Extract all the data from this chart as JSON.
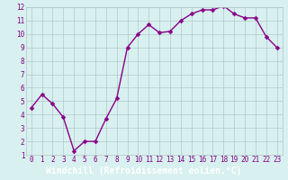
{
  "x": [
    0,
    1,
    2,
    3,
    4,
    5,
    6,
    7,
    8,
    9,
    10,
    11,
    12,
    13,
    14,
    15,
    16,
    17,
    18,
    19,
    20,
    21,
    22,
    23
  ],
  "y": [
    4.5,
    5.5,
    4.8,
    3.8,
    1.3,
    2.0,
    2.0,
    3.7,
    5.2,
    9.0,
    10.0,
    10.7,
    10.1,
    10.2,
    11.0,
    11.5,
    11.8,
    11.8,
    12.1,
    11.5,
    11.2,
    11.2,
    9.8,
    9.0
  ],
  "line_color": "#880088",
  "marker": "D",
  "marker_size": 2.5,
  "bg_color": "#d8f0f0",
  "grid_color": "#b0c8c8",
  "xlabel": "Windchill (Refroidissement éolien,°C)",
  "xlim": [
    -0.5,
    23.5
  ],
  "ylim": [
    1,
    12
  ],
  "yticks": [
    1,
    2,
    3,
    4,
    5,
    6,
    7,
    8,
    9,
    10,
    11,
    12
  ],
  "xticks": [
    0,
    1,
    2,
    3,
    4,
    5,
    6,
    7,
    8,
    9,
    10,
    11,
    12,
    13,
    14,
    15,
    16,
    17,
    18,
    19,
    20,
    21,
    22,
    23
  ],
  "xlabel_color": "#ffffff",
  "xlabel_bg": "#800080",
  "tick_label_color": "#800080",
  "tick_fontsize": 5.5,
  "xlabel_fontsize": 7.0,
  "linewidth": 1.0
}
